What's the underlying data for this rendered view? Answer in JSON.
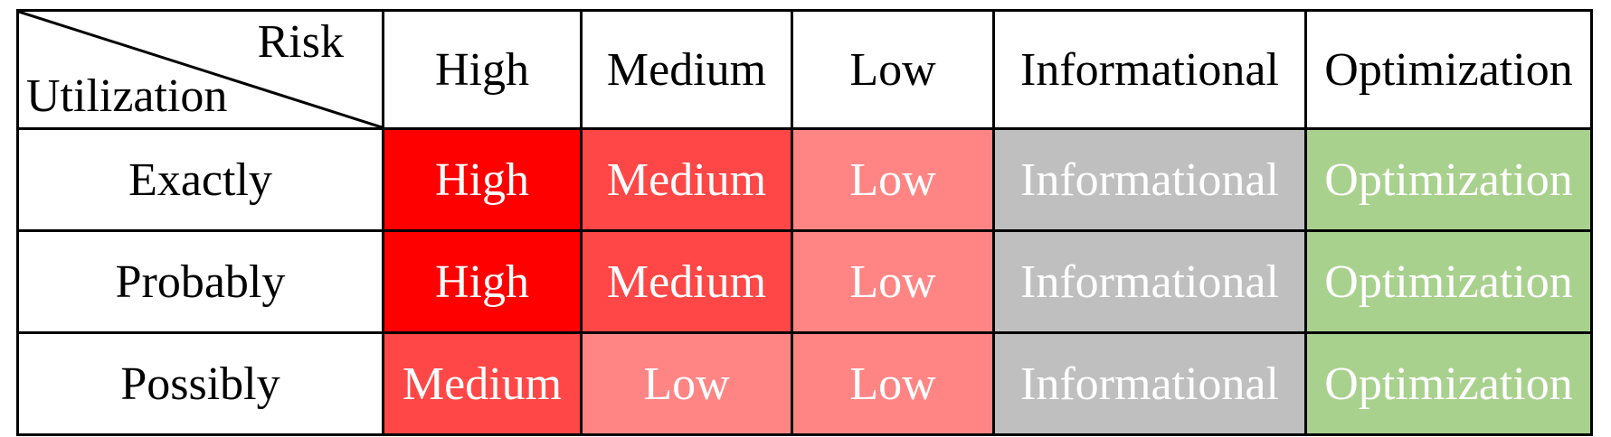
{
  "corner": {
    "column_axis": "Risk",
    "row_axis": "Utilization"
  },
  "columns": [
    "High",
    "Medium",
    "Low",
    "Informational",
    "Optimization"
  ],
  "rows": [
    {
      "label": "Exactly",
      "cells": [
        "High",
        "Medium",
        "Low",
        "Informational",
        "Optimization"
      ]
    },
    {
      "label": "Probably",
      "cells": [
        "High",
        "Medium",
        "Low",
        "Informational",
        "Optimization"
      ]
    },
    {
      "label": "Possibly",
      "cells": [
        "Medium",
        "Low",
        "Low",
        "Informational",
        "Optimization"
      ]
    }
  ],
  "colors": {
    "High": "#ff0000",
    "Medium": "#ff4747",
    "Low": "#ff8585",
    "Informational": "#bfbfbf",
    "Optimization": "#a9d18e"
  }
}
